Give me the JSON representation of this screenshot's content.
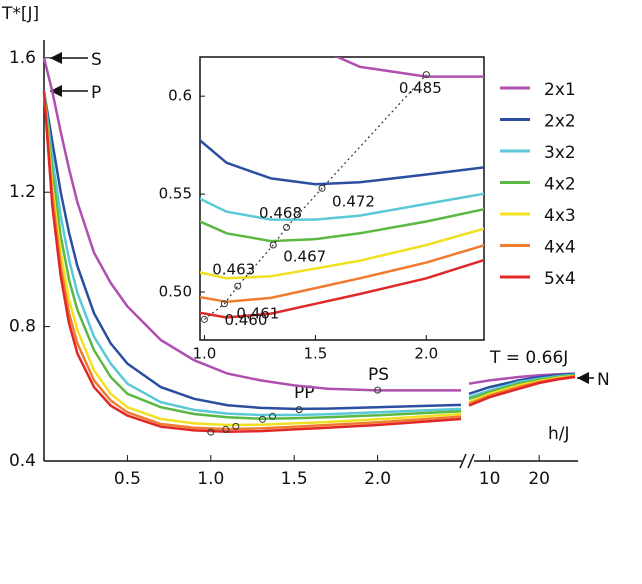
{
  "chart_data": {
    "type": "line",
    "ylabel": "T*[J]",
    "xlabel": "h/J",
    "ylim": [
      0.4,
      1.65
    ],
    "yticks": [
      0.4,
      0.8,
      1.2,
      1.6
    ],
    "xlim": [
      0,
      2.5
    ],
    "xticks": [
      0.5,
      {
        "value": 1,
        "label": "1.0"
      },
      1.5,
      {
        "value": 2,
        "label": "2.0"
      }
    ],
    "x2lim": [
      7.5,
      33
    ],
    "x2scale": "log",
    "x2ticks": [
      10,
      20
    ],
    "x": [
      0,
      0.05,
      0.1,
      0.15,
      0.2,
      0.3,
      0.4,
      0.5,
      0.7,
      0.9,
      1.1,
      1.3,
      1.5,
      1.7,
      2.0,
      2.5
    ],
    "x2": [
      7.5,
      10,
      15,
      20,
      26,
      33
    ],
    "annotations": {
      "S": "S",
      "P": "P",
      "PS": "PS",
      "PP": "PP",
      "N": "N",
      "limit": "T = 0.66J"
    },
    "series": [
      {
        "name": "2x1",
        "color": "#b04fb0",
        "values": [
          1.6,
          1.5,
          1.38,
          1.27,
          1.17,
          1.02,
          0.93,
          0.86,
          0.76,
          0.7,
          0.66,
          0.64,
          0.625,
          0.615,
          0.61,
          0.61
        ],
        "values2": [
          0.63,
          0.64,
          0.65,
          0.655,
          0.658,
          0.66
        ]
      },
      {
        "name": "2x2",
        "color": "#2b4fa0",
        "values": [
          1.5,
          1.35,
          1.2,
          1.08,
          0.98,
          0.84,
          0.75,
          0.69,
          0.62,
          0.585,
          0.566,
          0.558,
          0.555,
          0.556,
          0.56,
          0.567
        ],
        "values2": [
          0.6,
          0.62,
          0.64,
          0.65,
          0.655,
          0.66
        ]
      },
      {
        "name": "3x2",
        "color": "#5bc8d8",
        "values": [
          1.5,
          1.3,
          1.13,
          1.0,
          0.9,
          0.77,
          0.69,
          0.63,
          0.575,
          0.552,
          0.541,
          0.537,
          0.537,
          0.539,
          0.545,
          0.555
        ],
        "values2": [
          0.59,
          0.61,
          0.635,
          0.645,
          0.652,
          0.657
        ]
      },
      {
        "name": "4x2",
        "color": "#5ab843",
        "values": [
          1.5,
          1.26,
          1.07,
          0.94,
          0.85,
          0.73,
          0.65,
          0.6,
          0.56,
          0.54,
          0.53,
          0.526,
          0.527,
          0.53,
          0.536,
          0.548
        ],
        "values2": [
          0.585,
          0.605,
          0.63,
          0.642,
          0.65,
          0.655
        ]
      },
      {
        "name": "4x3",
        "color": "#f0e020",
        "values": [
          1.5,
          1.22,
          1.02,
          0.88,
          0.79,
          0.67,
          0.6,
          0.56,
          0.525,
          0.512,
          0.507,
          0.508,
          0.512,
          0.516,
          0.524,
          0.54
        ],
        "values2": [
          0.575,
          0.6,
          0.625,
          0.638,
          0.648,
          0.653
        ]
      },
      {
        "name": "4x4",
        "color": "#f07a30",
        "values": [
          1.5,
          1.19,
          0.98,
          0.84,
          0.75,
          0.64,
          0.58,
          0.545,
          0.51,
          0.499,
          0.495,
          0.497,
          0.502,
          0.507,
          0.515,
          0.532
        ],
        "values2": [
          0.57,
          0.595,
          0.62,
          0.635,
          0.645,
          0.652
        ]
      },
      {
        "name": "5x4",
        "color": "#e02828",
        "values": [
          1.5,
          1.16,
          0.95,
          0.81,
          0.72,
          0.62,
          0.565,
          0.535,
          0.502,
          0.491,
          0.487,
          0.489,
          0.494,
          0.499,
          0.507,
          0.525
        ],
        "values2": [
          0.565,
          0.59,
          0.615,
          0.632,
          0.643,
          0.65
        ]
      }
    ],
    "inset": {
      "xlim": [
        0.98,
        2.26
      ],
      "ylim": [
        0.4755,
        0.62
      ],
      "xticks": [
        {
          "value": 1,
          "label": "1.0"
        },
        1.5,
        {
          "value": 2,
          "label": "2.0"
        }
      ],
      "yticks": [
        {
          "value": 0.5,
          "label": "0.50"
        },
        0.55,
        0.6
      ],
      "points": {
        "x": [
          1.0,
          1.09,
          1.15,
          1.31,
          1.37,
          1.53,
          2.0
        ],
        "y": [
          0.486,
          0.494,
          0.503,
          0.524,
          0.533,
          0.553,
          0.611
        ],
        "labels": [
          "0.460",
          "0.461",
          "0.463",
          "0.467",
          "0.468",
          "0.472",
          "0.485"
        ]
      }
    }
  }
}
